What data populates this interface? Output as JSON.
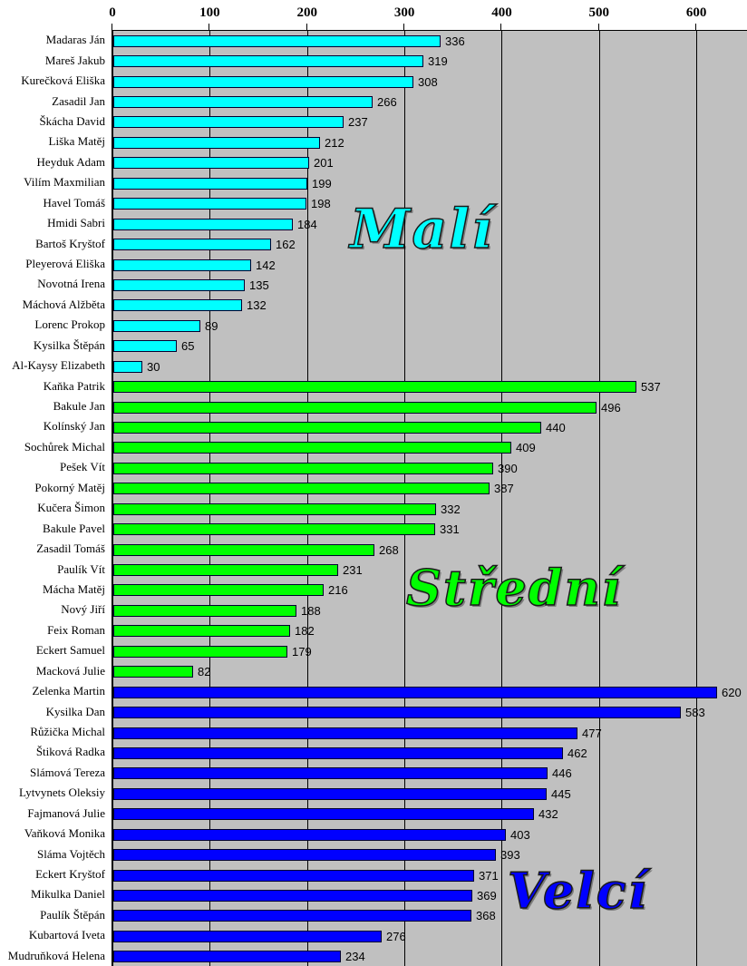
{
  "chart_data": {
    "type": "bar",
    "orientation": "horizontal",
    "title": "",
    "xlabel": "",
    "ylabel": "",
    "xlim": [
      0,
      652
    ],
    "axis_ticks": [
      0,
      100,
      200,
      300,
      400,
      500,
      600
    ],
    "grid": true,
    "legend": "none",
    "plot_background": "#C0C0C0",
    "gridline_color": "#000000",
    "bar_border_color": "#000030",
    "groups": [
      {
        "label": "Malí",
        "color": "#00FFFF",
        "members": [
          {
            "name": "Madaras Ján",
            "value": 336
          },
          {
            "name": "Mareš Jakub",
            "value": 319
          },
          {
            "name": "Kurečková Eliška",
            "value": 308
          },
          {
            "name": "Zasadil Jan",
            "value": 266
          },
          {
            "name": "Škácha David",
            "value": 237
          },
          {
            "name": "Liška Matěj",
            "value": 212
          },
          {
            "name": "Heyduk Adam",
            "value": 201
          },
          {
            "name": "Vilím Maxmilian",
            "value": 199
          },
          {
            "name": "Havel Tomáš",
            "value": 198
          },
          {
            "name": "Hmidi Sabri",
            "value": 184
          },
          {
            "name": "Bartoš Kryštof",
            "value": 162
          },
          {
            "name": "Pleyerová Eliška",
            "value": 142
          },
          {
            "name": "Novotná Irena",
            "value": 135
          },
          {
            "name": "Máchová Alžběta",
            "value": 132
          },
          {
            "name": "Lorenc Prokop",
            "value": 89
          },
          {
            "name": "Kysilka Štěpán",
            "value": 65
          },
          {
            "name": "Al-Kaysy Elizabeth",
            "value": 30
          }
        ]
      },
      {
        "label": "Střední",
        "color": "#00FF00",
        "members": [
          {
            "name": "Kaňka Patrik",
            "value": 537
          },
          {
            "name": "Bakule Jan",
            "value": 496
          },
          {
            "name": "Kolínský Jan",
            "value": 440
          },
          {
            "name": "Sochůrek Michal",
            "value": 409
          },
          {
            "name": "Pešek Vít",
            "value": 390
          },
          {
            "name": "Pokorný Matěj",
            "value": 387
          },
          {
            "name": "Kučera Šimon",
            "value": 332
          },
          {
            "name": "Bakule Pavel",
            "value": 331
          },
          {
            "name": "Zasadil Tomáš",
            "value": 268
          },
          {
            "name": "Paulík Vít",
            "value": 231
          },
          {
            "name": "Mácha Matěj",
            "value": 216
          },
          {
            "name": "Nový Jiří",
            "value": 188
          },
          {
            "name": "Feix Roman",
            "value": 182
          },
          {
            "name": "Eckert Samuel",
            "value": 179
          },
          {
            "name": "Macková Julie",
            "value": 82
          }
        ]
      },
      {
        "label": "Velcí",
        "color": "#0000FF",
        "members": [
          {
            "name": "Zelenka Martin",
            "value": 620
          },
          {
            "name": "Kysilka Dan",
            "value": 583
          },
          {
            "name": "Růžička Michal",
            "value": 477
          },
          {
            "name": "Štiková Radka",
            "value": 462
          },
          {
            "name": "Slámová Tereza",
            "value": 446
          },
          {
            "name": "Lytvynets Oleksiy",
            "value": 445
          },
          {
            "name": "Fajmanová Julie",
            "value": 432
          },
          {
            "name": "Vaňková Monika",
            "value": 403
          },
          {
            "name": "Sláma Vojtěch",
            "value": 393
          },
          {
            "name": "Eckert Kryštof",
            "value": 371
          },
          {
            "name": "Mikulka Daniel",
            "value": 369
          },
          {
            "name": "Paulík Štěpán",
            "value": 368
          },
          {
            "name": "Kubartová Iveta",
            "value": 276
          },
          {
            "name": "Mudruňková Helena",
            "value": 234
          }
        ]
      }
    ]
  }
}
